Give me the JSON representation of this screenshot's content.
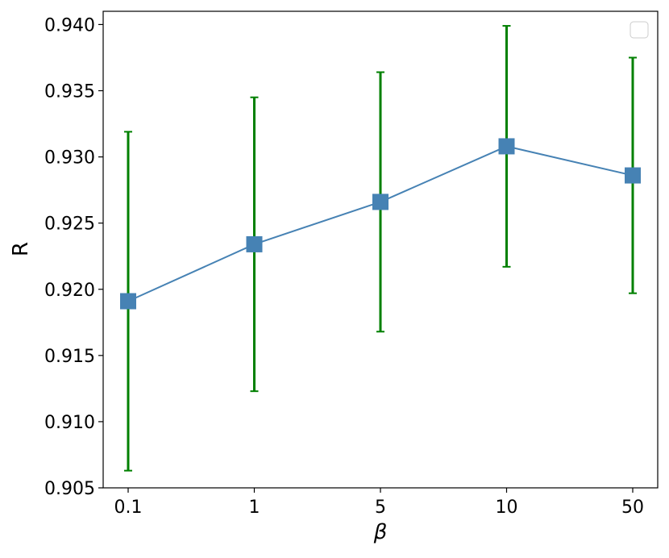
{
  "chart_data": {
    "type": "line",
    "categories": [
      "0.1",
      "1",
      "5",
      "10",
      "50"
    ],
    "series": [
      {
        "values": [
          0.9191,
          0.9234,
          0.9266,
          0.9308,
          0.9286
        ],
        "error_low": [
          0.9063,
          0.9123,
          0.9168,
          0.9217,
          0.9197
        ],
        "error_high": [
          0.9319,
          0.9345,
          0.9364,
          0.9399,
          0.9375
        ],
        "line_color": "#4682b4",
        "marker": "square",
        "error_color": "#008000"
      }
    ],
    "xlabel": "β",
    "ylabel": "R",
    "ylim": [
      0.905,
      0.941
    ],
    "yticks": [
      "0.905",
      "0.910",
      "0.915",
      "0.920",
      "0.925",
      "0.930",
      "0.935",
      "0.940"
    ],
    "grid": false,
    "legend": {
      "position": "top-right",
      "entries": []
    }
  }
}
